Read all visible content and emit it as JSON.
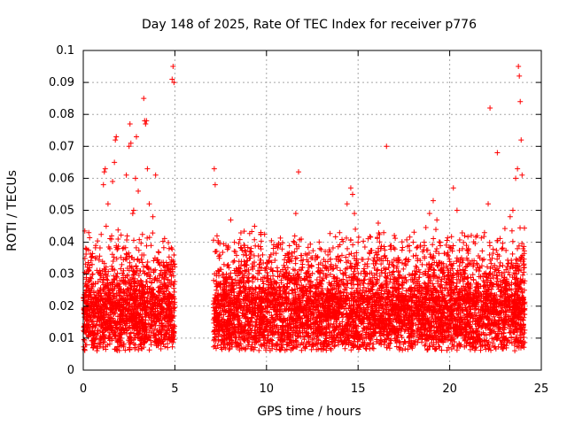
{
  "chart_data": {
    "type": "scatter",
    "title": "Day 148 of 2025, Rate Of TEC Index for receiver p776",
    "xlabel": "GPS time / hours",
    "ylabel": "ROTI / TECUs",
    "xlim": [
      0,
      25
    ],
    "ylim": [
      0,
      0.1
    ],
    "x_ticks": [
      0,
      5,
      10,
      15,
      20,
      25
    ],
    "x_tick_labels": [
      "0",
      "5",
      "10",
      "15",
      "20",
      "25"
    ],
    "y_ticks": [
      0,
      0.01,
      0.02,
      0.03,
      0.04,
      0.05,
      0.06,
      0.07,
      0.08,
      0.09,
      0.1
    ],
    "y_tick_labels": [
      "0",
      "0.01",
      "0.02",
      "0.03",
      "0.04",
      "0.05",
      "0.06",
      "0.07",
      "0.08",
      "0.09",
      "0.1"
    ],
    "grid": true,
    "marker": "+",
    "series": [
      {
        "name": "p776",
        "color": "#ff0000",
        "points": [
          [
            0.05,
            0.012
          ],
          [
            0.15,
            0.018
          ],
          [
            0.25,
            0.022
          ],
          [
            0.3,
            0.043
          ],
          [
            0.35,
            0.032
          ],
          [
            0.45,
            0.015
          ],
          [
            0.55,
            0.027
          ],
          [
            0.65,
            0.035
          ],
          [
            0.75,
            0.011
          ],
          [
            0.85,
            0.024
          ],
          [
            0.95,
            0.016
          ],
          [
            1.05,
            0.034
          ],
          [
            1.1,
            0.058
          ],
          [
            1.15,
            0.062
          ],
          [
            1.2,
            0.063
          ],
          [
            1.25,
            0.045
          ],
          [
            1.35,
            0.052
          ],
          [
            1.45,
            0.038
          ],
          [
            1.55,
            0.042
          ],
          [
            1.6,
            0.059
          ],
          [
            1.7,
            0.065
          ],
          [
            1.75,
            0.072
          ],
          [
            1.8,
            0.073
          ],
          [
            1.9,
            0.041
          ],
          [
            2.0,
            0.028
          ],
          [
            2.1,
            0.033
          ],
          [
            2.2,
            0.025
          ],
          [
            2.35,
            0.061
          ],
          [
            2.5,
            0.07
          ],
          [
            2.55,
            0.077
          ],
          [
            2.6,
            0.071
          ],
          [
            2.7,
            0.049
          ],
          [
            2.75,
            0.05
          ],
          [
            2.85,
            0.06
          ],
          [
            2.9,
            0.073
          ],
          [
            3.0,
            0.056
          ],
          [
            3.1,
            0.031
          ],
          [
            3.2,
            0.036
          ],
          [
            3.3,
            0.085
          ],
          [
            3.35,
            0.078
          ],
          [
            3.4,
            0.077
          ],
          [
            3.45,
            0.078
          ],
          [
            3.5,
            0.063
          ],
          [
            3.6,
            0.052
          ],
          [
            3.7,
            0.039
          ],
          [
            3.8,
            0.048
          ],
          [
            3.95,
            0.061
          ],
          [
            4.1,
            0.037
          ],
          [
            4.3,
            0.029
          ],
          [
            4.45,
            0.022
          ],
          [
            4.6,
            0.019
          ],
          [
            4.75,
            0.014
          ],
          [
            4.85,
            0.091
          ],
          [
            4.9,
            0.095
          ],
          [
            4.95,
            0.09
          ],
          [
            4.95,
            0.036
          ],
          [
            7.15,
            0.063
          ],
          [
            7.2,
            0.058
          ],
          [
            7.3,
            0.042
          ],
          [
            7.45,
            0.036
          ],
          [
            7.6,
            0.03
          ],
          [
            7.8,
            0.026
          ],
          [
            8.05,
            0.047
          ],
          [
            8.25,
            0.04
          ],
          [
            8.5,
            0.034
          ],
          [
            8.8,
            0.039
          ],
          [
            9.05,
            0.028
          ],
          [
            9.35,
            0.045
          ],
          [
            9.6,
            0.033
          ],
          [
            9.9,
            0.029
          ],
          [
            10.2,
            0.024
          ],
          [
            10.6,
            0.031
          ],
          [
            11.0,
            0.026
          ],
          [
            11.3,
            0.029
          ],
          [
            11.6,
            0.049
          ],
          [
            11.75,
            0.062
          ],
          [
            11.9,
            0.041
          ],
          [
            12.2,
            0.03
          ],
          [
            12.6,
            0.022
          ],
          [
            13.0,
            0.024
          ],
          [
            13.4,
            0.021
          ],
          [
            13.8,
            0.023
          ],
          [
            14.2,
            0.03
          ],
          [
            14.4,
            0.052
          ],
          [
            14.6,
            0.057
          ],
          [
            14.7,
            0.055
          ],
          [
            14.8,
            0.049
          ],
          [
            15.0,
            0.04
          ],
          [
            15.3,
            0.031
          ],
          [
            15.7,
            0.028
          ],
          [
            16.1,
            0.046
          ],
          [
            16.4,
            0.043
          ],
          [
            16.55,
            0.07
          ],
          [
            16.8,
            0.039
          ],
          [
            17.2,
            0.027
          ],
          [
            17.6,
            0.022
          ],
          [
            18.0,
            0.018
          ],
          [
            18.5,
            0.033
          ],
          [
            18.9,
            0.049
          ],
          [
            19.1,
            0.053
          ],
          [
            19.3,
            0.047
          ],
          [
            19.6,
            0.031
          ],
          [
            20.0,
            0.034
          ],
          [
            20.2,
            0.057
          ],
          [
            20.4,
            0.05
          ],
          [
            20.7,
            0.038
          ],
          [
            21.0,
            0.029
          ],
          [
            21.5,
            0.033
          ],
          [
            21.9,
            0.043
          ],
          [
            22.1,
            0.052
          ],
          [
            22.2,
            0.082
          ],
          [
            22.6,
            0.068
          ],
          [
            23.0,
            0.029
          ],
          [
            23.3,
            0.048
          ],
          [
            23.45,
            0.05
          ],
          [
            23.6,
            0.06
          ],
          [
            23.7,
            0.063
          ],
          [
            23.75,
            0.095
          ],
          [
            23.8,
            0.092
          ],
          [
            23.85,
            0.084
          ],
          [
            23.9,
            0.072
          ],
          [
            23.95,
            0.061
          ],
          [
            24.0,
            0.038
          ],
          [
            24.05,
            0.021
          ]
        ]
      }
    ]
  }
}
